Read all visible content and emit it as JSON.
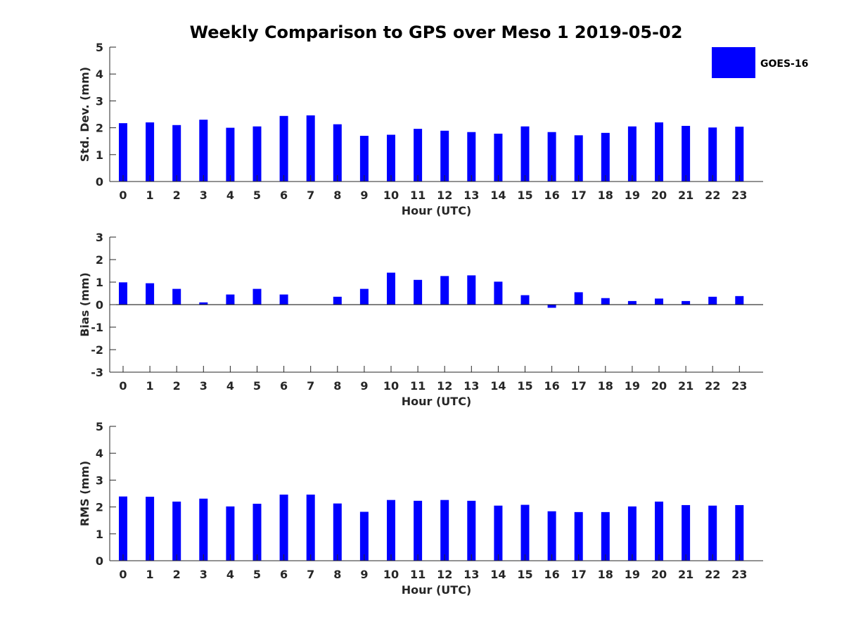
{
  "title": "Weekly Comparison to GPS over Meso 1 2019-05-02",
  "legend": {
    "label": "GOES-16",
    "color": "#0000ff",
    "placement": "top-right"
  },
  "colors": {
    "bar": "#0000ff",
    "axis": "#262626"
  },
  "chart_data": [
    {
      "type": "bar",
      "title": "Weekly Comparison to GPS over Meso 1 2019-05-02",
      "xlabel": "Hour (UTC)",
      "ylabel": "Std. Dev. (mm)",
      "ylim": [
        0,
        5
      ],
      "yticks": [
        0,
        1,
        2,
        3,
        4,
        5
      ],
      "categories": [
        "0",
        "1",
        "2",
        "3",
        "4",
        "5",
        "6",
        "7",
        "8",
        "9",
        "10",
        "11",
        "12",
        "13",
        "14",
        "15",
        "16",
        "17",
        "18",
        "19",
        "20",
        "21",
        "22",
        "23"
      ],
      "series": [
        {
          "name": "GOES-16",
          "values": [
            2.17,
            2.2,
            2.1,
            2.3,
            2.0,
            2.05,
            2.44,
            2.46,
            2.13,
            1.7,
            1.74,
            1.96,
            1.89,
            1.84,
            1.78,
            2.05,
            1.84,
            1.72,
            1.81,
            2.05,
            2.2,
            2.07,
            2.01,
            2.04
          ]
        }
      ]
    },
    {
      "type": "bar",
      "xlabel": "Hour (UTC)",
      "ylabel": "Bias (mm)",
      "ylim": [
        -3,
        3
      ],
      "yticks": [
        -3,
        -2,
        -1,
        0,
        1,
        2,
        3
      ],
      "categories": [
        "0",
        "1",
        "2",
        "3",
        "4",
        "5",
        "6",
        "7",
        "8",
        "9",
        "10",
        "11",
        "12",
        "13",
        "14",
        "15",
        "16",
        "17",
        "18",
        "19",
        "20",
        "21",
        "22",
        "23"
      ],
      "series": [
        {
          "name": "GOES-16",
          "values": [
            0.99,
            0.95,
            0.7,
            0.1,
            0.45,
            0.7,
            0.45,
            0.0,
            0.35,
            0.7,
            1.42,
            1.1,
            1.27,
            1.3,
            1.02,
            0.42,
            -0.14,
            0.55,
            0.29,
            0.16,
            0.27,
            0.16,
            0.35,
            0.38
          ]
        }
      ]
    },
    {
      "type": "bar",
      "xlabel": "Hour (UTC)",
      "ylabel": "RMS (mm)",
      "ylim": [
        0,
        5
      ],
      "yticks": [
        0,
        1,
        2,
        3,
        4,
        5
      ],
      "categories": [
        "0",
        "1",
        "2",
        "3",
        "4",
        "5",
        "6",
        "7",
        "8",
        "9",
        "10",
        "11",
        "12",
        "13",
        "14",
        "15",
        "16",
        "17",
        "18",
        "19",
        "20",
        "21",
        "22",
        "23"
      ],
      "series": [
        {
          "name": "GOES-16",
          "values": [
            2.39,
            2.38,
            2.2,
            2.31,
            2.02,
            2.12,
            2.46,
            2.46,
            2.13,
            1.82,
            2.26,
            2.23,
            2.26,
            2.23,
            2.05,
            2.08,
            1.84,
            1.81,
            1.81,
            2.02,
            2.2,
            2.07,
            2.05,
            2.07
          ]
        }
      ]
    }
  ]
}
